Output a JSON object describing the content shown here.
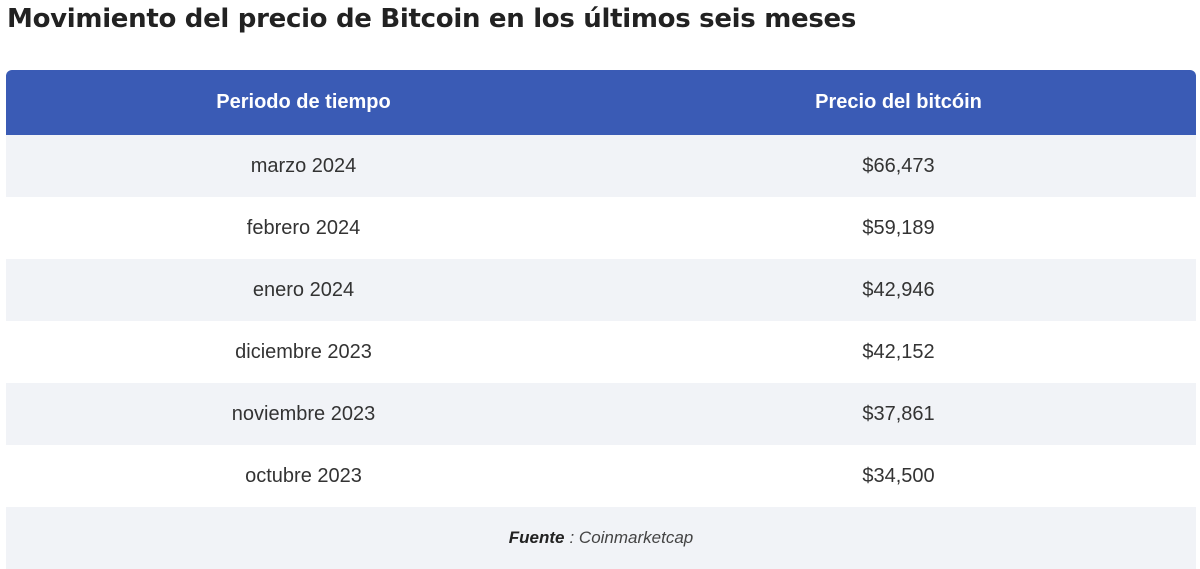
{
  "title": "Movimiento del precio de Bitcoin en los últimos seis meses",
  "table": {
    "header": [
      "Periodo de tiempo",
      "Precio del bitcóin"
    ],
    "rows": [
      [
        "marzo 2024",
        "$66,473"
      ],
      [
        "febrero 2024",
        "$59,189"
      ],
      [
        "enero 2024",
        "$42,946"
      ],
      [
        "diciembre 2023",
        "$42,152"
      ],
      [
        "noviembre 2023",
        "$37,861"
      ],
      [
        "octubre 2023",
        "$34,500"
      ]
    ]
  },
  "source": {
    "label": "Fuente",
    "text": ": Coinmarketcap"
  }
}
